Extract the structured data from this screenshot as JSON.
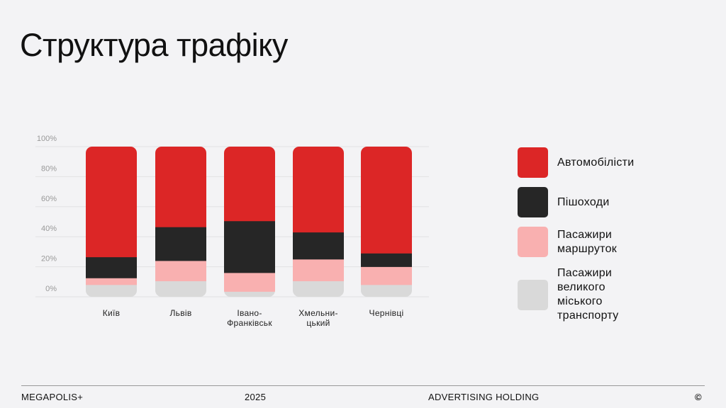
{
  "slide": {
    "title": "Структура трафіку"
  },
  "chart_data": {
    "type": "bar",
    "stacked": true,
    "categories": [
      "Київ",
      "Львів",
      "Івано-\nФранківськ",
      "Хмельни-\nцький",
      "Чернівці"
    ],
    "ylim": [
      0,
      100
    ],
    "yticks": [
      "0%",
      "20%",
      "40%",
      "60%",
      "80%",
      "100%"
    ],
    "grid": true,
    "legend_position": "right",
    "series": [
      {
        "name": "Пасажири великого\nміського транспорту",
        "color": "#d9d9d9",
        "values": [
          8,
          10.5,
          3.5,
          10.5,
          8
        ]
      },
      {
        "name": "Пасажири маршруток",
        "color": "#f9b0b0",
        "values": [
          4.5,
          13.5,
          12.5,
          14.5,
          12
        ]
      },
      {
        "name": "Пішоходи",
        "color": "#262626",
        "values": [
          14,
          22.5,
          34.5,
          18,
          9
        ]
      },
      {
        "name": "Автомобілісти",
        "color": "#dc2626",
        "values": [
          73.5,
          53.5,
          49.5,
          57,
          71
        ]
      }
    ]
  },
  "footer": {
    "brand": "MEGAPOLIS+",
    "year": "2025",
    "tagline": "ADVERTISING HOLDING",
    "copyright": "©"
  }
}
